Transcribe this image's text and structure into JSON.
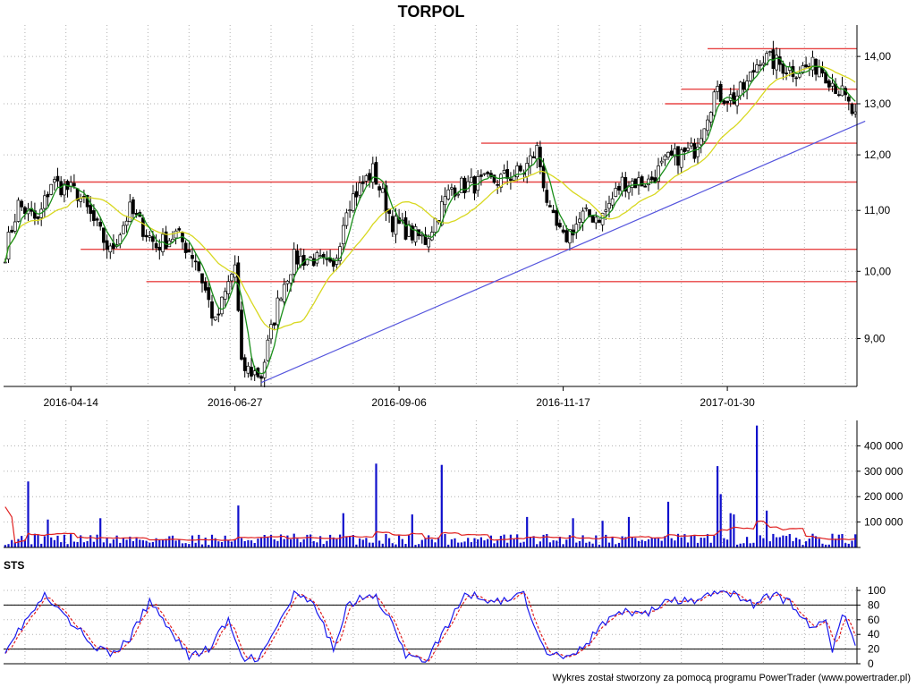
{
  "page": {
    "title": "TORPOL",
    "footer": "Wykres został stworzony za pomocą programu PowerTrader (www.powertrader.pl)"
  },
  "colors": {
    "candle": "#000000",
    "sma_fast": "#1a8f1a",
    "sma_slow": "#d8d820",
    "support_resistance": "#e84545",
    "trendline": "#5555dd",
    "volume_bar": "#1010cc",
    "volume_avg": "#e02020",
    "stoch_k": "#1a1aee",
    "stoch_d": "#e02020",
    "grid": "#b0b0b0"
  },
  "chart_data": [
    {
      "type": "candlestick",
      "panel": "price",
      "title": "TORPOL",
      "grid": true,
      "x_tick_labels": [
        "2016-04-14",
        "2016-06-27",
        "2016-09-06",
        "2016-11-17",
        "2017-01-30"
      ],
      "x_tick_session_index": [
        20,
        70,
        120,
        170,
        220
      ],
      "session_count": 260,
      "y_ticks": [
        9.0,
        10.0,
        11.0,
        12.0,
        13.0,
        14.0
      ],
      "y_tick_labels": [
        "9,00",
        "10,00",
        "11,00",
        "12,00",
        "13,00",
        "14,00"
      ],
      "y_scale": "log",
      "ylim": [
        8.35,
        14.5
      ],
      "anchors": [
        [
          0,
          10.3
        ],
        [
          4,
          11.1
        ],
        [
          10,
          10.8
        ],
        [
          14,
          11.5
        ],
        [
          22,
          11.3
        ],
        [
          32,
          10.3
        ],
        [
          38,
          11.0
        ],
        [
          46,
          10.4
        ],
        [
          52,
          10.6
        ],
        [
          58,
          10.2
        ],
        [
          64,
          9.2
        ],
        [
          70,
          10.1
        ],
        [
          72,
          8.6
        ],
        [
          78,
          8.5
        ],
        [
          84,
          9.7
        ],
        [
          88,
          10.2
        ],
        [
          94,
          10.2
        ],
        [
          100,
          10.0
        ],
        [
          104,
          11.1
        ],
        [
          112,
          11.7
        ],
        [
          118,
          10.8
        ],
        [
          124,
          10.6
        ],
        [
          128,
          10.5
        ],
        [
          136,
          11.4
        ],
        [
          148,
          11.5
        ],
        [
          158,
          11.7
        ],
        [
          162,
          12.1
        ],
        [
          166,
          10.9
        ],
        [
          170,
          10.5
        ],
        [
          176,
          10.9
        ],
        [
          182,
          10.9
        ],
        [
          188,
          11.5
        ],
        [
          196,
          11.5
        ],
        [
          202,
          11.9
        ],
        [
          210,
          12.1
        ],
        [
          216,
          13.2
        ],
        [
          222,
          13.1
        ],
        [
          226,
          13.4
        ],
        [
          230,
          14.0
        ],
        [
          240,
          13.7
        ],
        [
          248,
          13.8
        ],
        [
          255,
          13.2
        ],
        [
          259,
          12.7
        ]
      ],
      "support_resistance_levels": [
        {
          "y": 14.17,
          "x_start": 214
        },
        {
          "y": 13.3,
          "x_start": 206
        },
        {
          "y": 13.0,
          "x_start": 201
        },
        {
          "y": 12.22,
          "x_start": 145
        },
        {
          "y": 11.5,
          "x_start": 18
        },
        {
          "y": 10.35,
          "x_start": 23
        },
        {
          "y": 9.84,
          "x_start": 43
        }
      ],
      "trendline": {
        "from": [
          78,
          8.4
        ],
        "to": [
          262,
          12.65
        ]
      },
      "sma_fast_period": 5,
      "sma_slow_period": 20
    },
    {
      "type": "bar",
      "panel": "volume",
      "grid": true,
      "y_ticks": [
        0,
        100000,
        200000,
        300000,
        400000
      ],
      "y_tick_labels": [
        "",
        "100 000",
        "200 000",
        "300 000",
        "400 000"
      ],
      "ylim": [
        0,
        500000
      ],
      "spikes": [
        {
          "x": 7,
          "v": 260000
        },
        {
          "x": 113,
          "v": 330000
        },
        {
          "x": 133,
          "v": 325000
        },
        {
          "x": 71,
          "v": 165000
        },
        {
          "x": 103,
          "v": 135000
        },
        {
          "x": 124,
          "v": 130000
        },
        {
          "x": 159,
          "v": 120000
        },
        {
          "x": 202,
          "v": 180000
        },
        {
          "x": 217,
          "v": 320000
        },
        {
          "x": 218,
          "v": 210000
        },
        {
          "x": 229,
          "v": 480000
        },
        {
          "x": 232,
          "v": 145000
        },
        {
          "x": 221,
          "v": 135000
        },
        {
          "x": 222,
          "v": 130000
        },
        {
          "x": 190,
          "v": 120000
        },
        {
          "x": 13,
          "v": 110000
        },
        {
          "x": 29,
          "v": 115000
        },
        {
          "x": 173,
          "v": 115000
        },
        {
          "x": 182,
          "v": 105000
        }
      ],
      "moving_average_start": 160000
    },
    {
      "type": "line",
      "panel": "stochastic",
      "label": "STS",
      "grid": true,
      "y_ticks": [
        0,
        20,
        40,
        60,
        80,
        100
      ],
      "y_tick_labels": [
        "0",
        "20",
        "40",
        "60",
        "80",
        "100"
      ],
      "ylim": [
        0,
        100
      ],
      "reference_lines": [
        20,
        80
      ],
      "k_anchors": [
        [
          0,
          20
        ],
        [
          4,
          45
        ],
        [
          12,
          92
        ],
        [
          18,
          65
        ],
        [
          26,
          30
        ],
        [
          32,
          10
        ],
        [
          38,
          35
        ],
        [
          44,
          85
        ],
        [
          50,
          50
        ],
        [
          56,
          10
        ],
        [
          62,
          20
        ],
        [
          68,
          60
        ],
        [
          72,
          5
        ],
        [
          78,
          10
        ],
        [
          84,
          60
        ],
        [
          88,
          95
        ],
        [
          94,
          80
        ],
        [
          100,
          20
        ],
        [
          104,
          80
        ],
        [
          112,
          95
        ],
        [
          118,
          60
        ],
        [
          122,
          10
        ],
        [
          128,
          5
        ],
        [
          134,
          45
        ],
        [
          140,
          95
        ],
        [
          150,
          85
        ],
        [
          158,
          95
        ],
        [
          164,
          20
        ],
        [
          170,
          10
        ],
        [
          176,
          20
        ],
        [
          182,
          55
        ],
        [
          188,
          70
        ],
        [
          196,
          70
        ],
        [
          202,
          85
        ],
        [
          210,
          85
        ],
        [
          216,
          97
        ],
        [
          222,
          97
        ],
        [
          228,
          80
        ],
        [
          234,
          95
        ],
        [
          240,
          80
        ],
        [
          246,
          45
        ],
        [
          250,
          65
        ],
        [
          252,
          20
        ],
        [
          255,
          70
        ],
        [
          259,
          25
        ]
      ],
      "d_lag": 3
    }
  ]
}
